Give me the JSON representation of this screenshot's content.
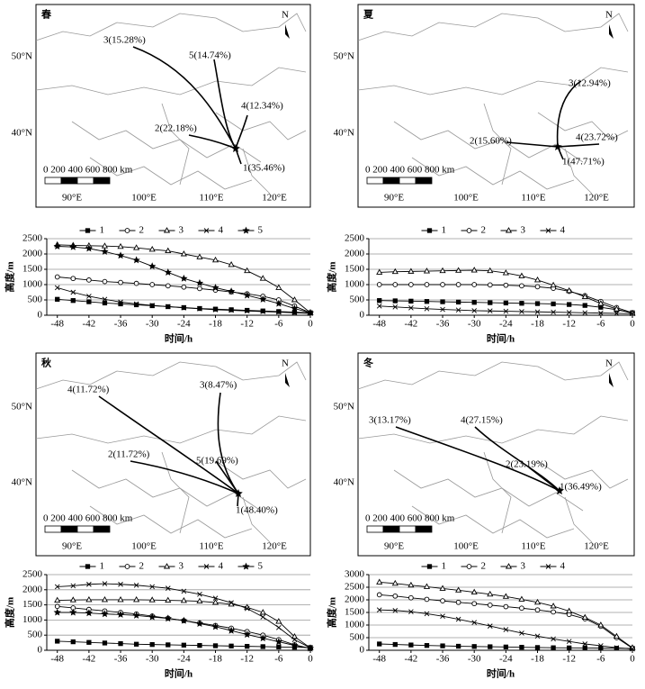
{
  "maps": [
    {
      "season": "春",
      "north": "N",
      "lat_labels": [
        "50°N",
        "40°N"
      ],
      "lon_labels": [
        "90°E",
        "100°E",
        "110°E",
        "120°E"
      ],
      "scale_label": "0 200 400 600 800 km",
      "clusters": [
        {
          "label": "3(15.28%)"
        },
        {
          "label": "5(14.74%)"
        },
        {
          "label": "4(12.34%)"
        },
        {
          "label": "2(22.18%)"
        },
        {
          "label": "1(35.46%)"
        }
      ]
    },
    {
      "season": "夏",
      "north": "N",
      "lat_labels": [
        "50°N",
        "40°N"
      ],
      "lon_labels": [
        "90°E",
        "100°E",
        "110°E",
        "120°E"
      ],
      "scale_label": "0 200 400 600 800 km",
      "clusters": [
        {
          "label": "3(12.94%)"
        },
        {
          "label": "4(23.72%)"
        },
        {
          "label": "2(15.60%)"
        },
        {
          "label": "1(47.71%)"
        }
      ]
    },
    {
      "season": "秋",
      "north": "N",
      "lat_labels": [
        "50°N",
        "40°N"
      ],
      "lon_labels": [
        "90°E",
        "100°E",
        "110°E",
        "120°E"
      ],
      "scale_label": "0 200 400 600 800 km",
      "clusters": [
        {
          "label": "4(11.72%)"
        },
        {
          "label": "3(8.47%)"
        },
        {
          "label": "2(11.72%)"
        },
        {
          "label": "5(19.69%)"
        },
        {
          "label": "1(48.40%)"
        }
      ]
    },
    {
      "season": "冬",
      "north": "N",
      "lat_labels": [
        "50°N",
        "40°N"
      ],
      "lon_labels": [
        "90°E",
        "100°E",
        "110°E",
        "120°E"
      ],
      "scale_label": "0 200 400 600 800 km",
      "clusters": [
        {
          "label": "3(13.17%)"
        },
        {
          "label": "4(27.15%)"
        },
        {
          "label": "2(23.19%)"
        },
        {
          "label": "1(36.49%)"
        }
      ]
    }
  ],
  "chart_data": [
    {
      "type": "line",
      "xlabel": "时间/h",
      "ylabel": "高度/m",
      "grid": true,
      "xlim": [
        -50,
        0
      ],
      "xticks": [
        -48,
        -42,
        -36,
        -30,
        -24,
        -18,
        -12,
        -6,
        0
      ],
      "ylim": [
        0,
        2500
      ],
      "yticks": [
        0,
        500,
        1000,
        1500,
        2000,
        2500
      ],
      "x": [
        -48,
        -45,
        -42,
        -39,
        -36,
        -33,
        -30,
        -27,
        -24,
        -21,
        -18,
        -15,
        -12,
        -9,
        -6,
        -3,
        0
      ],
      "series": [
        {
          "name": "1",
          "color": "#000000",
          "marker": "square",
          "values": [
            520,
            480,
            440,
            400,
            370,
            340,
            310,
            280,
            250,
            220,
            200,
            180,
            160,
            140,
            120,
            100,
            80
          ]
        },
        {
          "name": "2",
          "color": "#000000",
          "marker": "circle",
          "values": [
            1250,
            1200,
            1150,
            1100,
            1070,
            1040,
            1000,
            960,
            920,
            870,
            820,
            760,
            700,
            620,
            500,
            300,
            80
          ]
        },
        {
          "name": "3",
          "color": "#000000",
          "marker": "triangle",
          "values": [
            2300,
            2280,
            2270,
            2260,
            2240,
            2200,
            2150,
            2100,
            2000,
            1900,
            1800,
            1650,
            1450,
            1200,
            900,
            500,
            80
          ]
        },
        {
          "name": "4",
          "color": "#000000",
          "marker": "cross",
          "values": [
            900,
            750,
            620,
            520,
            430,
            370,
            320,
            280,
            240,
            210,
            180,
            160,
            140,
            120,
            100,
            80,
            60
          ]
        },
        {
          "name": "5",
          "color": "#000000",
          "marker": "star",
          "values": [
            2250,
            2230,
            2180,
            2080,
            1950,
            1800,
            1600,
            1400,
            1200,
            1050,
            900,
            780,
            650,
            520,
            380,
            220,
            80
          ]
        }
      ]
    },
    {
      "type": "line",
      "xlabel": "时间/h",
      "ylabel": "高度/m",
      "grid": true,
      "xlim": [
        -50,
        0
      ],
      "xticks": [
        -48,
        -42,
        -36,
        -30,
        -24,
        -18,
        -12,
        -6,
        0
      ],
      "ylim": [
        0,
        2500
      ],
      "yticks": [
        0,
        500,
        1000,
        1500,
        2000,
        2500
      ],
      "x": [
        -48,
        -45,
        -42,
        -39,
        -36,
        -33,
        -30,
        -27,
        -24,
        -21,
        -18,
        -15,
        -12,
        -9,
        -6,
        -3,
        0
      ],
      "series": [
        {
          "name": "1",
          "color": "#000000",
          "marker": "square",
          "values": [
            480,
            470,
            460,
            450,
            440,
            430,
            420,
            410,
            400,
            390,
            380,
            370,
            350,
            320,
            260,
            180,
            80
          ]
        },
        {
          "name": "2",
          "color": "#000000",
          "marker": "circle",
          "values": [
            1000,
            1000,
            1000,
            1000,
            1000,
            1000,
            1000,
            990,
            980,
            960,
            930,
            880,
            780,
            640,
            450,
            250,
            80
          ]
        },
        {
          "name": "3",
          "color": "#000000",
          "marker": "triangle",
          "values": [
            1400,
            1420,
            1430,
            1440,
            1450,
            1460,
            1470,
            1450,
            1380,
            1280,
            1150,
            980,
            800,
            600,
            380,
            200,
            60
          ]
        },
        {
          "name": "4",
          "color": "#000000",
          "marker": "cross",
          "values": [
            300,
            270,
            240,
            210,
            190,
            170,
            150,
            140,
            130,
            120,
            110,
            100,
            90,
            80,
            70,
            60,
            50
          ]
        }
      ]
    },
    {
      "type": "line",
      "xlabel": "时间/h",
      "ylabel": "高度/m",
      "grid": true,
      "xlim": [
        -50,
        0
      ],
      "xticks": [
        -48,
        -42,
        -36,
        -30,
        -24,
        -18,
        -12,
        -6,
        0
      ],
      "ylim": [
        0,
        2500
      ],
      "yticks": [
        0,
        500,
        1000,
        1500,
        2000,
        2500
      ],
      "x": [
        -48,
        -45,
        -42,
        -39,
        -36,
        -33,
        -30,
        -27,
        -24,
        -21,
        -18,
        -15,
        -12,
        -9,
        -6,
        -3,
        0
      ],
      "series": [
        {
          "name": "1",
          "color": "#000000",
          "marker": "square",
          "values": [
            300,
            280,
            260,
            240,
            220,
            200,
            190,
            180,
            170,
            160,
            150,
            140,
            130,
            120,
            110,
            100,
            90
          ]
        },
        {
          "name": "2",
          "color": "#000000",
          "marker": "circle",
          "values": [
            1450,
            1400,
            1350,
            1300,
            1250,
            1200,
            1130,
            1060,
            980,
            900,
            820,
            730,
            620,
            500,
            350,
            180,
            60
          ]
        },
        {
          "name": "3",
          "color": "#000000",
          "marker": "triangle",
          "values": [
            1650,
            1660,
            1670,
            1670,
            1670,
            1670,
            1660,
            1650,
            1640,
            1620,
            1580,
            1520,
            1420,
            1250,
            950,
            450,
            80
          ]
        },
        {
          "name": "4",
          "color": "#000000",
          "marker": "cross",
          "values": [
            2100,
            2130,
            2180,
            2200,
            2180,
            2150,
            2100,
            2050,
            1950,
            1850,
            1720,
            1570,
            1380,
            1100,
            750,
            350,
            80
          ]
        },
        {
          "name": "5",
          "color": "#000000",
          "marker": "star",
          "values": [
            1250,
            1250,
            1230,
            1200,
            1180,
            1150,
            1100,
            1050,
            980,
            880,
            780,
            650,
            520,
            400,
            280,
            160,
            60
          ]
        }
      ]
    },
    {
      "type": "line",
      "xlabel": "时间/h",
      "ylabel": "高度/m",
      "grid": true,
      "xlim": [
        -50,
        0
      ],
      "xticks": [
        -48,
        -42,
        -36,
        -30,
        -24,
        -18,
        -12,
        -6,
        0
      ],
      "ylim": [
        0,
        3000
      ],
      "yticks": [
        0,
        500,
        1000,
        1500,
        2000,
        2500,
        3000
      ],
      "x": [
        -48,
        -45,
        -42,
        -39,
        -36,
        -33,
        -30,
        -27,
        -24,
        -21,
        -18,
        -15,
        -12,
        -9,
        -6,
        -3,
        0
      ],
      "series": [
        {
          "name": "1",
          "color": "#000000",
          "marker": "square",
          "values": [
            250,
            230,
            210,
            190,
            175,
            160,
            150,
            140,
            130,
            120,
            110,
            100,
            95,
            90,
            85,
            80,
            75
          ]
        },
        {
          "name": "2",
          "color": "#000000",
          "marker": "circle",
          "values": [
            2200,
            2150,
            2080,
            2020,
            1960,
            1900,
            1850,
            1790,
            1730,
            1670,
            1600,
            1520,
            1420,
            1250,
            950,
            500,
            80
          ]
        },
        {
          "name": "3",
          "color": "#000000",
          "marker": "triangle",
          "values": [
            2700,
            2650,
            2580,
            2520,
            2450,
            2380,
            2300,
            2220,
            2130,
            2020,
            1900,
            1750,
            1550,
            1300,
            1000,
            550,
            100
          ]
        },
        {
          "name": "4",
          "color": "#000000",
          "marker": "cross",
          "values": [
            1600,
            1580,
            1530,
            1450,
            1350,
            1230,
            1100,
            960,
            820,
            680,
            560,
            450,
            350,
            250,
            180,
            100,
            50
          ]
        }
      ]
    }
  ]
}
